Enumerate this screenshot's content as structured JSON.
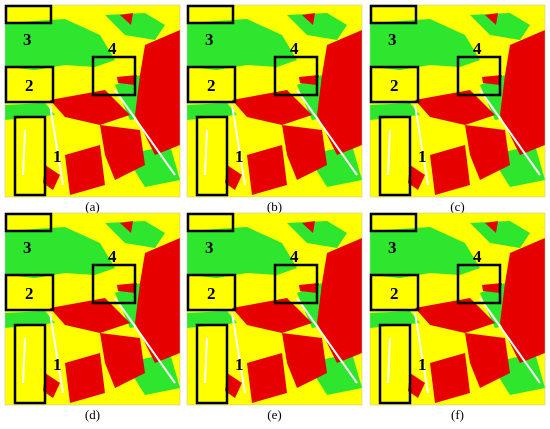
{
  "panels": [
    {
      "caption": "(a)",
      "boxes": [
        "1",
        "2",
        "3",
        "4"
      ]
    },
    {
      "caption": "(b)",
      "boxes": [
        "1",
        "2",
        "3",
        "4"
      ]
    },
    {
      "caption": "(c)",
      "boxes": [
        "1",
        "2",
        "3",
        "4"
      ]
    },
    {
      "caption": "(d)",
      "boxes": [
        "1",
        "2",
        "3",
        "4"
      ]
    },
    {
      "caption": "(e)",
      "boxes": [
        "1",
        "2",
        "3",
        "4"
      ]
    },
    {
      "caption": "(f)",
      "boxes": [
        "1",
        "2",
        "3",
        "4"
      ]
    }
  ]
}
